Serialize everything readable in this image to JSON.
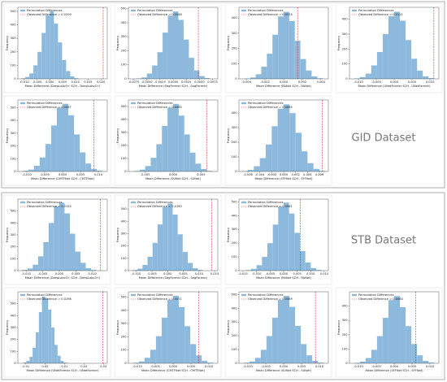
{
  "panel_labels": [
    "GID Dataset",
    "STB Dataset"
  ],
  "chart_data": [
    {
      "type": "histogram",
      "xlabel": "Mean Difference (DeepLabv3+ SCH - DeepLabv3+)",
      "ylabel": "Frequency",
      "legend": [
        "Permutation Differences",
        "Observed Difference = 0.0209"
      ],
      "observed": 0.0209,
      "color": "#8db9dc",
      "observed_color": "#d62728",
      "bins": [
        -0.0112,
        -0.0096,
        -0.008,
        -0.0064,
        -0.0048,
        -0.0032,
        -0.0016,
        0,
        0.0016,
        0.0032,
        0.0048,
        0.0064,
        0.008,
        0.0096,
        0.0112
      ],
      "values": [
        4,
        14,
        40,
        100,
        200,
        340,
        470,
        500,
        410,
        270,
        140,
        58,
        18,
        5
      ],
      "xlim": [
        -0.0125,
        0.0225
      ],
      "xticks": [
        {
          "value": -0.01,
          "label": "-0.010"
        },
        -0.005,
        {
          "value": 0,
          "label": "0.000"
        },
        0.005,
        {
          "value": 0.01,
          "label": "0.010"
        },
        0.015,
        {
          "value": 0.02,
          "label": "0.020"
        }
      ],
      "ylim": [
        0,
        530
      ],
      "yticks": [
        0,
        100,
        200,
        300,
        400,
        500
      ]
    },
    {
      "type": "histogram",
      "xlabel": "Mean Difference (SegFormer SCH - SegFormer)",
      "ylabel": "Frequency",
      "legend": [
        "Permutation Differences",
        "Observed Difference = 0.0048"
      ],
      "observed": 0.0048,
      "color": "#8db9dc",
      "observed_color": "#d62728",
      "bins": [
        -0.007,
        -0.006,
        -0.005,
        -0.004,
        -0.003,
        -0.002,
        -0.001,
        0,
        0.001,
        0.002,
        0.003,
        0.004,
        0.005,
        0.006,
        0.007
      ],
      "values": [
        3,
        10,
        38,
        95,
        190,
        330,
        450,
        480,
        420,
        280,
        150,
        60,
        20,
        6
      ],
      "xlim": [
        -0.0085,
        0.0085
      ],
      "xticks": [
        -0.0075,
        {
          "value": -0.005,
          "label": "-0.0050"
        },
        -0.0025,
        {
          "value": 0,
          "label": "0.0000"
        },
        0.0025,
        {
          "value": 0.005,
          "label": "0.0050"
        },
        0.0075
      ],
      "ylim": [
        0,
        510
      ],
      "yticks": [
        0,
        100,
        200,
        300,
        400,
        500
      ]
    },
    {
      "type": "histogram",
      "xlabel": "Mean Difference (RANet SCH - RANet)",
      "ylabel": "Frequency",
      "legend": [
        "Permutation Differences",
        "Observed Difference = 0.0015"
      ],
      "observed": 0.0015,
      "color": "#8db9dc",
      "observed_color": "#d62728",
      "bins": [
        -0.0042,
        -0.0036,
        -0.003,
        -0.0024,
        -0.0018,
        -0.0012,
        -0.0006,
        0,
        0.0006,
        0.0012,
        0.0018,
        0.0024,
        0.003,
        0.0036,
        0.0042
      ],
      "values": [
        2,
        9,
        30,
        80,
        165,
        290,
        410,
        440,
        380,
        250,
        130,
        55,
        16,
        4
      ],
      "xlim": [
        -0.0048,
        0.0048
      ],
      "xticks": [
        -0.004,
        -0.002,
        {
          "value": 0,
          "label": "0.000"
        },
        0.002,
        0.004
      ],
      "ylim": [
        0,
        470
      ],
      "yticks": [
        0,
        100,
        200,
        300,
        400
      ]
    },
    {
      "type": "histogram",
      "xlabel": "Mean Difference (UNetFormer SCH - UNetFormer)",
      "ylabel": "Frequency",
      "legend": [
        "Permutation Differences",
        "Observed Difference = 0.0111"
      ],
      "observed": 0.0111,
      "color": "#8db9dc",
      "observed_color": "#d62728",
      "bins": [
        -0.0112,
        -0.0096,
        -0.008,
        -0.0064,
        -0.0048,
        -0.0032,
        -0.0016,
        0,
        0.0016,
        0.0032,
        0.0048,
        0.0064,
        0.008,
        0.0096,
        0.0112
      ],
      "values": [
        3,
        12,
        35,
        90,
        180,
        300,
        420,
        450,
        390,
        260,
        135,
        55,
        17,
        5
      ],
      "xlim": [
        -0.0125,
        0.0125
      ],
      "xticks": [
        {
          "value": -0.01,
          "label": "-0.010"
        },
        -0.005,
        {
          "value": 0,
          "label": "0.000"
        },
        0.005,
        {
          "value": 0.01,
          "label": "0.010"
        }
      ],
      "ylim": [
        0,
        480
      ],
      "yticks": [
        0,
        100,
        200,
        300,
        400
      ]
    },
    {
      "type": "histogram",
      "xlabel": "Mean Difference (CMTFNet SCH - CMTFNet)",
      "ylabel": "Frequency",
      "legend": [
        "Permutation Differences",
        "Observed Difference = 0.0087"
      ],
      "observed": 0.0087,
      "color": "#8db9dc",
      "observed_color": "#d62728",
      "bins": [
        -0.0112,
        -0.0096,
        -0.008,
        -0.0064,
        -0.0048,
        -0.0032,
        -0.0016,
        0,
        0.0016,
        0.0032,
        0.0048,
        0.0064,
        0.008,
        0.0096,
        0.0112
      ],
      "values": [
        5,
        15,
        45,
        110,
        215,
        360,
        500,
        530,
        440,
        290,
        150,
        62,
        20,
        6
      ],
      "xlim": [
        -0.0125,
        0.0125
      ],
      "xticks": [
        {
          "value": -0.01,
          "label": "-0.010"
        },
        -0.005,
        {
          "value": 0,
          "label": "0.000"
        },
        0.005,
        {
          "value": 0.01,
          "label": "0.010"
        }
      ],
      "ylim": [
        0,
        560
      ],
      "yticks": [
        0,
        100,
        200,
        300,
        400,
        500
      ]
    },
    {
      "type": "histogram",
      "xlabel": "Mean Difference (SUNet SCH - SUNet)",
      "ylabel": "Frequency",
      "legend": [
        "Permutation Differences",
        "Observed Difference = 0.0060"
      ],
      "observed": 0.006,
      "color": "#8db9dc",
      "observed_color": "#d62728",
      "bins": [
        -0.007,
        -0.006,
        -0.005,
        -0.004,
        -0.003,
        -0.002,
        -0.001,
        0,
        0.001,
        0.002,
        0.003,
        0.004,
        0.005,
        0.006,
        0.007
      ],
      "values": [
        4,
        14,
        42,
        105,
        210,
        350,
        490,
        520,
        430,
        285,
        145,
        60,
        19,
        5
      ],
      "xlim": [
        -0.008,
        0.008
      ],
      "xticks": [
        -0.005,
        {
          "value": 0,
          "label": "0.000"
        },
        0.005
      ],
      "ylim": [
        0,
        550
      ],
      "yticks": [
        0,
        100,
        200,
        300,
        400,
        500
      ]
    },
    {
      "type": "histogram",
      "xlabel": "Mean Difference (SFFNet SCH - SFFNet)",
      "ylabel": "Frequency",
      "legend": [
        "Permutation Differences",
        "Observed Difference = 0.0065"
      ],
      "observed": 0.0065,
      "color": "#8db9dc",
      "observed_color": "#d62728",
      "bins": [
        -0.007,
        -0.006,
        -0.005,
        -0.004,
        -0.003,
        -0.002,
        -0.001,
        0,
        0.001,
        0.002,
        0.003,
        0.004,
        0.005,
        0.006,
        0.007
      ],
      "values": [
        3,
        11,
        36,
        92,
        185,
        310,
        430,
        460,
        400,
        265,
        138,
        57,
        18,
        5
      ],
      "xlim": [
        -0.0075,
        0.0075
      ],
      "xticks": [
        -0.006,
        -0.004,
        -0.002,
        {
          "value": 0,
          "label": "0.000"
        },
        0.002,
        0.004,
        0.006
      ],
      "ylim": [
        0,
        490
      ],
      "yticks": [
        0,
        100,
        200,
        300,
        400
      ]
    },
    {
      "type": "histogram",
      "xlabel": "Mean Difference (DeepLabv3+ SCH - DeepLabv3+)",
      "ylabel": "Frequency",
      "legend": [
        "Permutation Differences",
        "Observed Difference = 0.0124"
      ],
      "observed": 0.0124,
      "color": "#8db9dc",
      "observed_color": "#d62728",
      "bins": [
        -0.0112,
        -0.0096,
        -0.008,
        -0.0064,
        -0.0048,
        -0.0032,
        -0.0016,
        0,
        0.0016,
        0.0032,
        0.0048,
        0.0064,
        0.008,
        0.0096,
        0.0112
      ],
      "values": [
        6,
        18,
        50,
        120,
        240,
        400,
        540,
        570,
        480,
        310,
        160,
        66,
        21,
        6
      ],
      "xlim": [
        -0.0125,
        0.0145
      ],
      "xticks": [
        {
          "value": -0.01,
          "label": "-0.010"
        },
        -0.005,
        {
          "value": 0,
          "label": "0.000"
        },
        0.005,
        {
          "value": 0.01,
          "label": "0.010"
        }
      ],
      "ylim": [
        0,
        600
      ],
      "yticks": [
        0,
        100,
        200,
        300,
        400,
        500
      ]
    },
    {
      "type": "histogram",
      "xlabel": "Mean Difference (SegFormer SCH - SegFormer)",
      "ylabel": "Frequency",
      "legend": [
        "Permutation Differences",
        "Observed Difference = 0.0140"
      ],
      "observed": 0.014,
      "color": "#8db9dc",
      "observed_color": "#d62728",
      "bins": [
        -0.0112,
        -0.0096,
        -0.008,
        -0.0064,
        -0.0048,
        -0.0032,
        -0.0016,
        0,
        0.0016,
        0.0032,
        0.0048,
        0.0064,
        0.008,
        0.0096,
        0.0112
      ],
      "values": [
        5,
        16,
        46,
        112,
        225,
        375,
        515,
        545,
        455,
        295,
        152,
        63,
        20,
        6
      ],
      "xlim": [
        -0.0125,
        0.016
      ],
      "xticks": [
        {
          "value": -0.01,
          "label": "-0.010"
        },
        -0.005,
        {
          "value": 0,
          "label": "0.000"
        },
        0.005,
        {
          "value": 0.01,
          "label": "0.010"
        },
        0.015
      ],
      "ylim": [
        0,
        580
      ],
      "yticks": [
        0,
        100,
        200,
        300,
        400,
        500
      ]
    },
    {
      "type": "histogram",
      "xlabel": "Mean Difference (RANet SCH - RANet)",
      "ylabel": "Frequency",
      "legend": [
        "Permutation Differences",
        "Observed Difference = 0.0061"
      ],
      "observed": 0.0061,
      "color": "#8db9dc",
      "observed_color": "#d62728",
      "bins": [
        -0.014,
        -0.012,
        -0.01,
        -0.008,
        -0.006,
        -0.004,
        -0.002,
        0,
        0.002,
        0.004,
        0.006,
        0.008,
        0.01,
        0.012,
        0.014
      ],
      "values": [
        4,
        13,
        40,
        100,
        200,
        335,
        465,
        495,
        415,
        275,
        142,
        59,
        19,
        5
      ],
      "xlim": [
        -0.0165,
        0.0165
      ],
      "xticks": [
        -0.015,
        {
          "value": -0.01,
          "label": "-0.010"
        },
        -0.005,
        {
          "value": 0,
          "label": "0.000"
        },
        0.005,
        {
          "value": 0.01,
          "label": "0.010"
        },
        0.015
      ],
      "ylim": [
        0,
        520
      ],
      "yticks": [
        0,
        100,
        200,
        300,
        400,
        500
      ]
    },
    {
      "type": "histogram",
      "xlabel": "Mean Difference (UNetFormer SCH - UNetFormer)",
      "ylabel": "Frequency",
      "legend": [
        "Permutation Differences",
        "Observed Difference = 0.0298"
      ],
      "observed": 0.0298,
      "color": "#8db9dc",
      "observed_color": "#d62728",
      "bins": [
        -0.0112,
        -0.0096,
        -0.008,
        -0.0064,
        -0.0048,
        -0.0032,
        -0.0016,
        0,
        0.0016,
        0.0032,
        0.0048,
        0.0064,
        0.008,
        0.0096,
        0.0112
      ],
      "values": [
        7,
        20,
        55,
        130,
        260,
        430,
        560,
        540,
        450,
        300,
        155,
        64,
        20,
        6
      ],
      "xlim": [
        -0.014,
        0.032
      ],
      "xticks": [
        -0.01,
        {
          "value": 0,
          "label": "0.00"
        },
        0.01,
        0.02,
        0.03
      ],
      "ylim": [
        0,
        600
      ],
      "yticks": [
        0,
        100,
        200,
        300,
        400,
        500
      ]
    },
    {
      "type": "histogram",
      "xlabel": "Mean Difference (CMTFNet SCH - CMTFNet)",
      "ylabel": "Frequency",
      "legend": [
        "Permutation Differences",
        "Observed Difference = 0.0071"
      ],
      "observed": 0.0071,
      "color": "#8db9dc",
      "observed_color": "#d62728",
      "bins": [
        -0.0112,
        -0.0096,
        -0.008,
        -0.0064,
        -0.0048,
        -0.0032,
        -0.0016,
        0,
        0.0016,
        0.0032,
        0.0048,
        0.0064,
        0.008,
        0.0096,
        0.0112
      ],
      "values": [
        4,
        14,
        42,
        102,
        205,
        345,
        480,
        510,
        425,
        280,
        145,
        60,
        19,
        5
      ],
      "xlim": [
        -0.0125,
        0.0125
      ],
      "xticks": [
        {
          "value": -0.01,
          "label": "-0.010"
        },
        -0.005,
        {
          "value": 0,
          "label": "0.000"
        },
        0.005,
        {
          "value": 0.01,
          "label": "0.010"
        }
      ],
      "ylim": [
        0,
        540
      ],
      "yticks": [
        0,
        100,
        200,
        300,
        400,
        500
      ]
    },
    {
      "type": "histogram",
      "xlabel": "Mean Difference (SUNet SCH - SUNet)",
      "ylabel": "Frequency",
      "legend": [
        "Permutation Differences",
        "Observed Difference = 0.0089"
      ],
      "observed": 0.0089,
      "color": "#8db9dc",
      "observed_color": "#d62728",
      "bins": [
        -0.0112,
        -0.0096,
        -0.008,
        -0.0064,
        -0.0048,
        -0.0032,
        -0.0016,
        0,
        0.0016,
        0.0032,
        0.0048,
        0.0064,
        0.008,
        0.0096,
        0.0112
      ],
      "values": [
        4,
        13,
        40,
        98,
        198,
        332,
        462,
        490,
        410,
        272,
        140,
        58,
        18,
        5
      ],
      "xlim": [
        -0.0125,
        0.0125
      ],
      "xticks": [
        {
          "value": -0.01,
          "label": "-0.010"
        },
        -0.005,
        {
          "value": 0,
          "label": "0.000"
        },
        0.005,
        {
          "value": 0.01,
          "label": "0.010"
        }
      ],
      "ylim": [
        0,
        520
      ],
      "yticks": [
        0,
        100,
        200,
        300,
        400,
        500
      ]
    },
    {
      "type": "histogram",
      "xlabel": "Mean Difference (SFFNet SCH - SFFNet)",
      "ylabel": "Frequency",
      "legend": [
        "Permutation Differences",
        "Observed Difference = 0.0060"
      ],
      "observed": 0.006,
      "color": "#8db9dc",
      "observed_color": "#d62728",
      "bins": [
        -0.0112,
        -0.0096,
        -0.008,
        -0.0064,
        -0.0048,
        -0.0032,
        -0.0016,
        0,
        0.0016,
        0.0032,
        0.0048,
        0.0064,
        0.008,
        0.0096,
        0.0112
      ],
      "values": [
        3,
        12,
        37,
        94,
        190,
        318,
        442,
        470,
        392,
        260,
        135,
        56,
        17,
        5
      ],
      "xlim": [
        -0.0125,
        0.0125
      ],
      "xticks": [
        {
          "value": -0.01,
          "label": "-0.010"
        },
        -0.005,
        {
          "value": 0,
          "label": "0.000"
        },
        0.005,
        {
          "value": 0.01,
          "label": "0.010"
        }
      ],
      "ylim": [
        0,
        500
      ],
      "yticks": [
        0,
        100,
        200,
        300,
        400
      ]
    }
  ]
}
